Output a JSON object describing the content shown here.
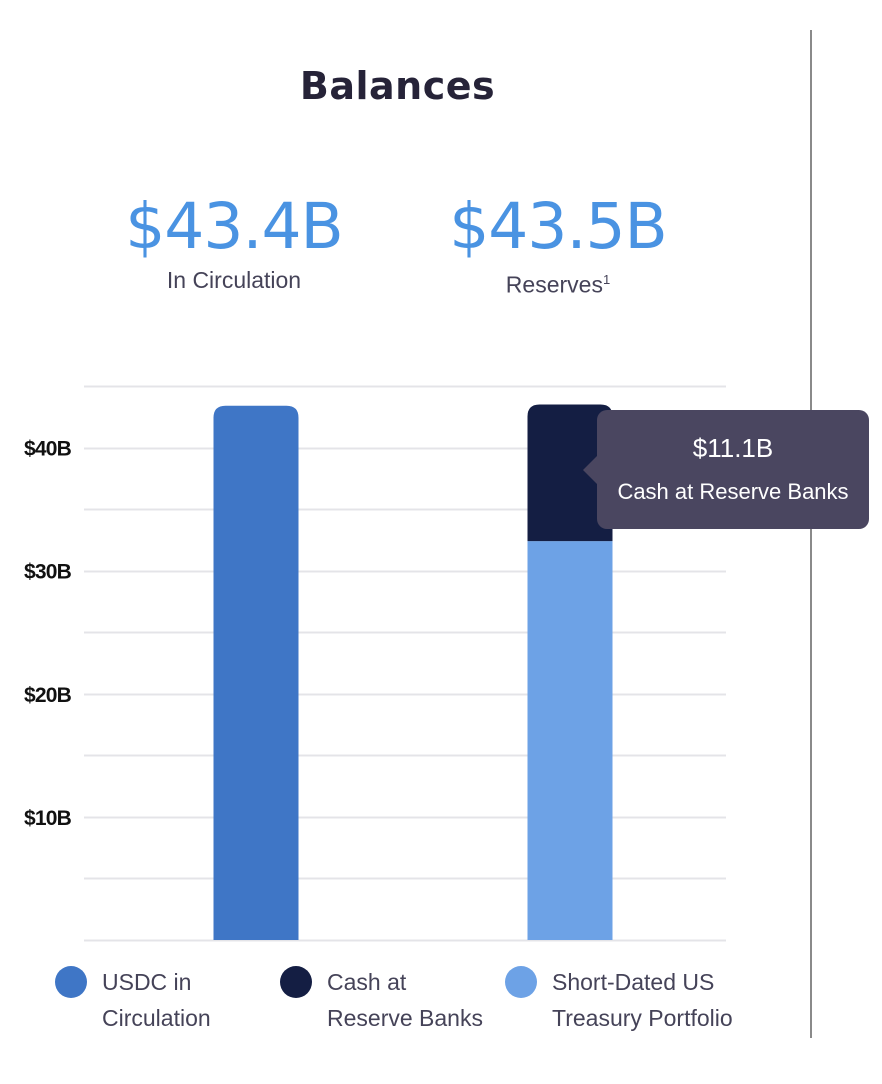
{
  "header": {
    "title": "Balances"
  },
  "stats": {
    "circulation": {
      "value": "$43.4B",
      "label": "In Circulation"
    },
    "reserves": {
      "value": "$43.5B",
      "label": "Reserves",
      "footnote": "1"
    }
  },
  "tooltip": {
    "value": "$11.1B",
    "label": "Cash at Reserve Banks"
  },
  "legend": {
    "items": [
      {
        "line1": "USDC in",
        "line2": "Circulation",
        "color": "#3f76c6"
      },
      {
        "line1": "Cash at",
        "line2": "Reserve Banks",
        "color": "#141e43"
      },
      {
        "line1": "Short-Dated US",
        "line2": "Treasury Portfolio",
        "color": "#6da2e6"
      }
    ]
  },
  "chart_data": {
    "type": "bar",
    "stacked": true,
    "categories": [
      "In Circulation",
      "Reserves"
    ],
    "series": [
      {
        "name": "USDC in Circulation",
        "values": [
          43.4,
          0
        ],
        "color": "#3f76c6"
      },
      {
        "name": "Short-Dated US Treasury Portfolio",
        "values": [
          0,
          32.4
        ],
        "color": "#6da2e6"
      },
      {
        "name": "Cash at Reserve Banks",
        "values": [
          0,
          11.1
        ],
        "color": "#141e43"
      }
    ],
    "y_ticks": [
      10,
      20,
      30,
      40
    ],
    "y_tick_labels": [
      "$10B",
      "$20B",
      "$30B",
      "$40B"
    ],
    "ylim": [
      0,
      45
    ],
    "grid_step": 5,
    "grid": true,
    "legend_position": "bottom",
    "title": "Balances",
    "xlabel": "",
    "ylabel": ""
  }
}
